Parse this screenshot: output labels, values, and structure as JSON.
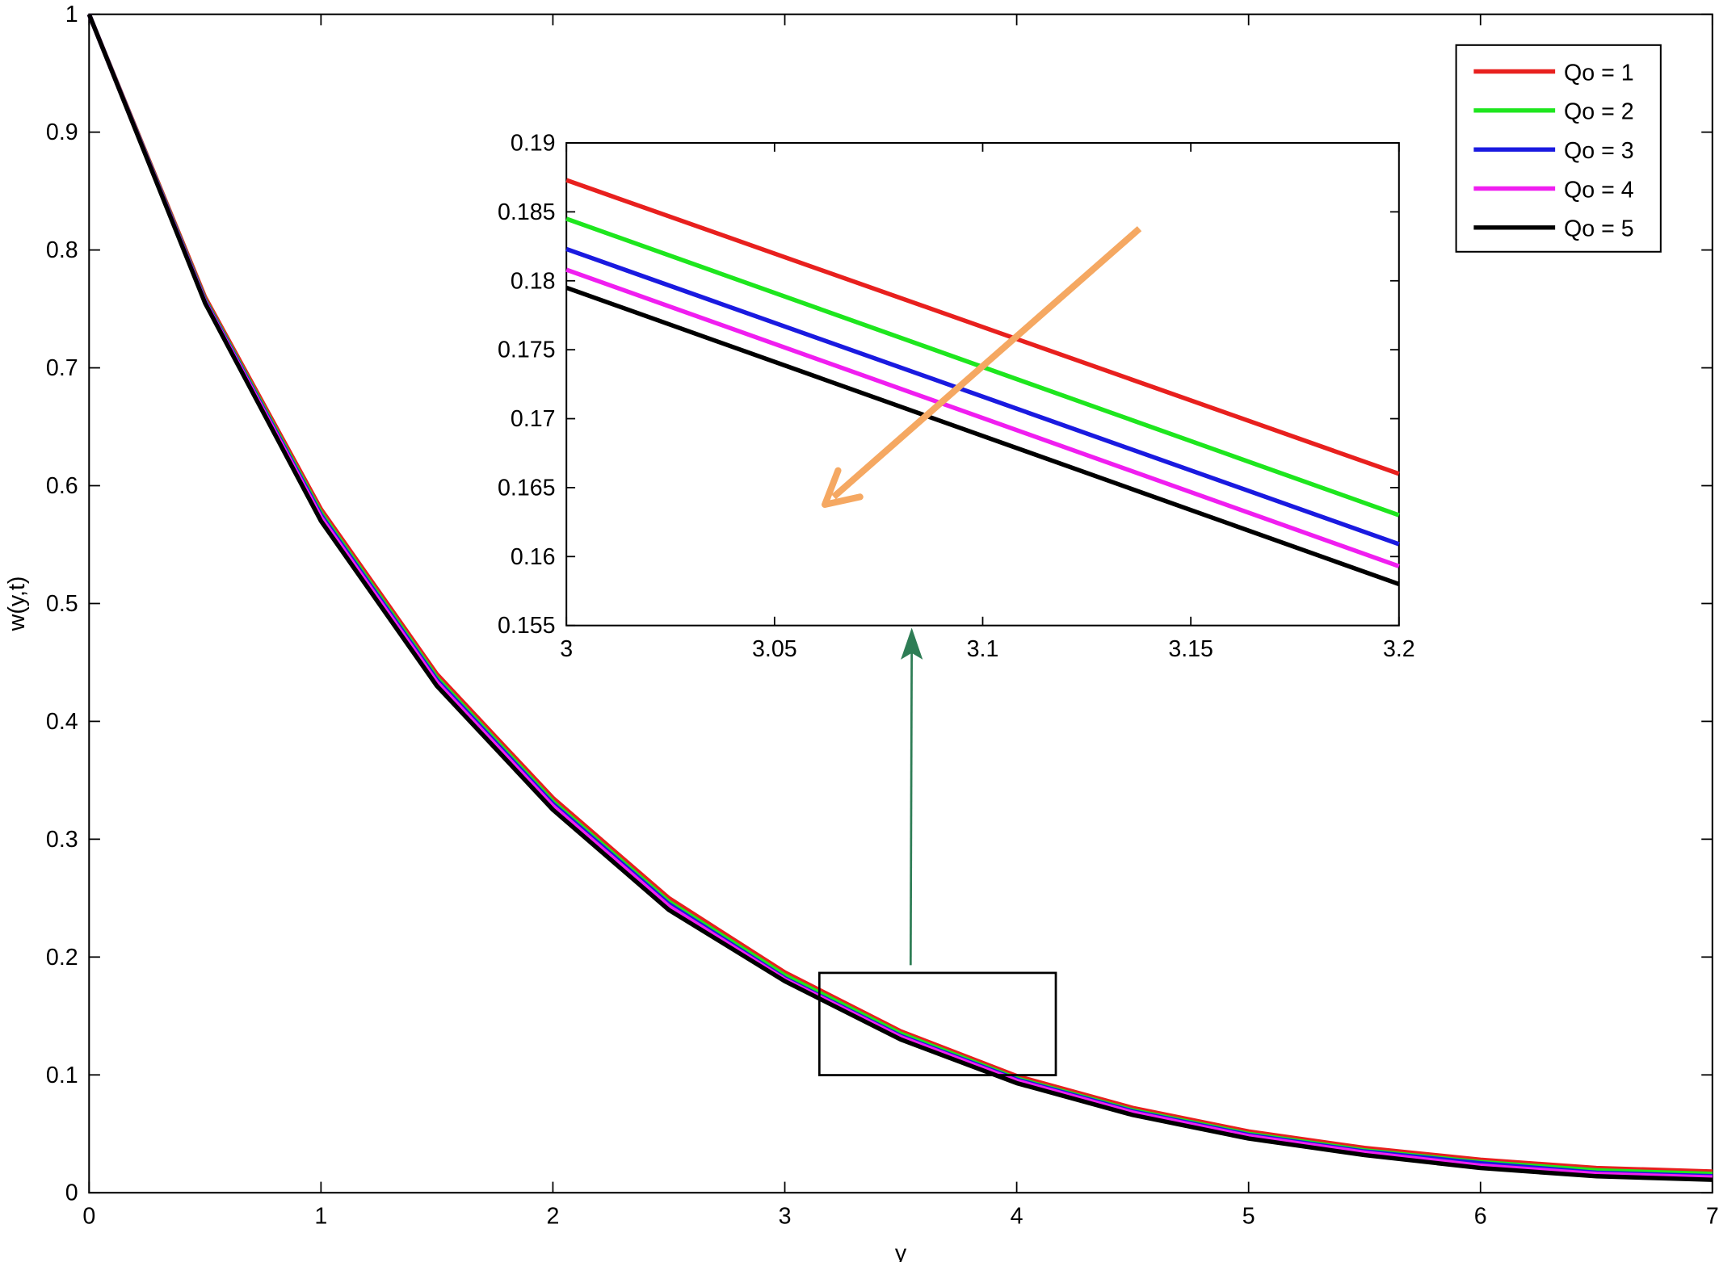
{
  "chart_data": [
    {
      "type": "line",
      "x_label": "y",
      "y_label": "w(y,t)",
      "x": [
        0,
        0.5,
        1,
        1.5,
        2,
        2.5,
        3,
        3.5,
        4,
        4.5,
        5,
        5.5,
        6,
        6.5,
        7
      ],
      "xlim": [
        0,
        7
      ],
      "ylim": [
        0,
        1
      ],
      "xticks": [
        0,
        1,
        2,
        3,
        4,
        5,
        6,
        7
      ],
      "yticks": [
        0,
        0.1,
        0.2,
        0.3,
        0.4,
        0.5,
        0.6,
        0.7,
        0.8,
        0.9,
        1
      ],
      "legend": "upper right",
      "series": [
        {
          "name": "Qo = 1",
          "color": "#e8201e",
          "values": [
            1,
            0.76,
            0.58,
            0.44,
            0.335,
            0.25,
            0.187,
            0.137,
            0.099,
            0.072,
            0.052,
            0.038,
            0.028,
            0.021,
            0.018
          ]
        },
        {
          "name": "Qo = 2",
          "color": "#1ee61e",
          "values": [
            1,
            0.758,
            0.577,
            0.437,
            0.332,
            0.247,
            0.1845,
            0.135,
            0.097,
            0.07,
            0.05,
            0.036,
            0.026,
            0.019,
            0.016
          ]
        },
        {
          "name": "Qo = 3",
          "color": "#1a1ae0",
          "values": [
            1,
            0.757,
            0.575,
            0.435,
            0.33,
            0.245,
            0.182,
            0.133,
            0.096,
            0.069,
            0.049,
            0.035,
            0.025,
            0.017,
            0.014
          ]
        },
        {
          "name": "Qo = 4",
          "color": "#f01ef0",
          "values": [
            1,
            0.756,
            0.573,
            0.433,
            0.328,
            0.243,
            0.181,
            0.132,
            0.095,
            0.068,
            0.048,
            0.034,
            0.023,
            0.016,
            0.013
          ]
        },
        {
          "name": "Qo = 5",
          "color": "#000000",
          "values": [
            1,
            0.755,
            0.57,
            0.43,
            0.325,
            0.24,
            0.1795,
            0.13,
            0.093,
            0.066,
            0.046,
            0.032,
            0.021,
            0.014,
            0.011
          ]
        }
      ]
    },
    {
      "type": "line",
      "x": [
        3,
        3.2
      ],
      "xlim": [
        3,
        3.2
      ],
      "ylim": [
        0.155,
        0.19
      ],
      "xticks": [
        3,
        3.05,
        3.1,
        3.15,
        3.2
      ],
      "yticks": [
        0.155,
        0.16,
        0.165,
        0.17,
        0.175,
        0.18,
        0.185,
        0.19
      ],
      "series": [
        {
          "color": "#e8201e",
          "values": [
            0.1873,
            0.166
          ]
        },
        {
          "color": "#1ee61e",
          "values": [
            0.1845,
            0.163
          ]
        },
        {
          "color": "#1a1ae0",
          "values": [
            0.1823,
            0.1609
          ]
        },
        {
          "color": "#f01ef0",
          "values": [
            0.1808,
            0.1593
          ]
        },
        {
          "color": "#000000",
          "values": [
            0.1795,
            0.158
          ]
        }
      ]
    }
  ]
}
